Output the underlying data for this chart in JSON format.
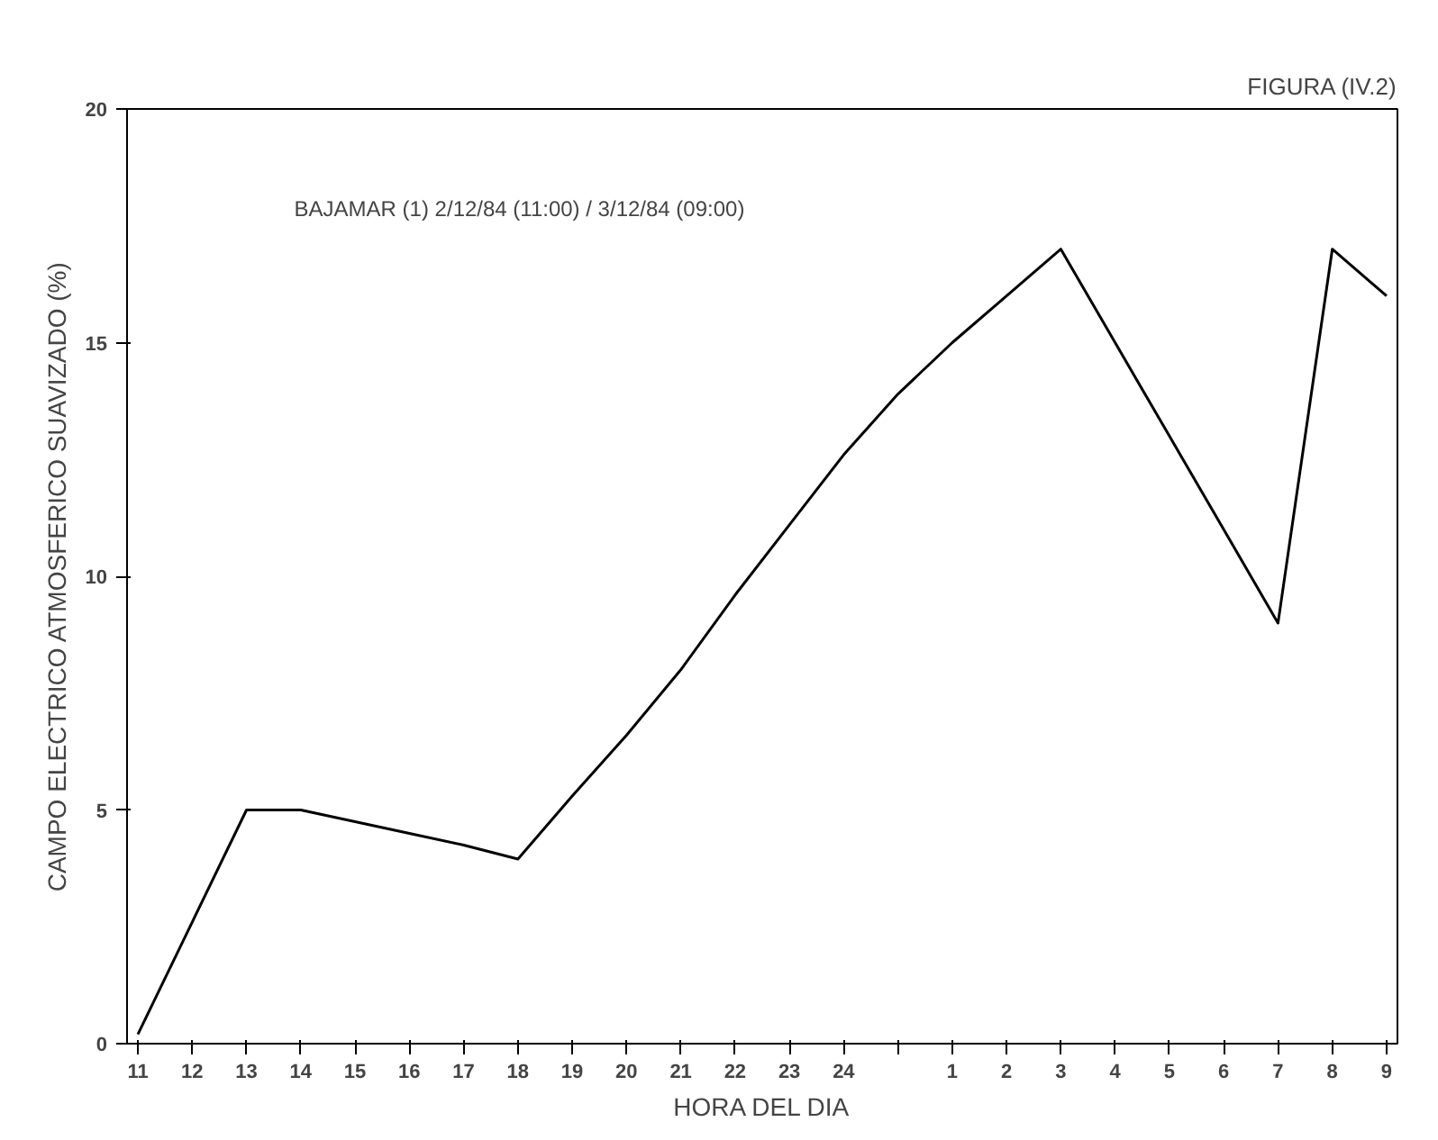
{
  "chart_data": {
    "type": "line",
    "title": "FIGURA (IV.2)",
    "xlabel": "HORA DEL DIA",
    "ylabel": "CAMPO ELECTRICO ATMOSFERICO SUAVIZADO (%)",
    "categories": [
      "11",
      "12",
      "13",
      "14",
      "15",
      "16",
      "17",
      "18",
      "19",
      "20",
      "21",
      "22",
      "23",
      "24",
      null,
      "1",
      "2",
      "3",
      "4",
      "5",
      "6",
      "7",
      "8",
      "9"
    ],
    "series": [
      {
        "color": "#000000",
        "values": [
          0.2,
          2.6,
          5.0,
          5.0,
          4.75,
          4.5,
          4.25,
          3.95,
          5.3,
          6.6,
          8.0,
          9.6,
          11.1,
          12.6,
          13.9,
          15.0,
          16.0,
          17.0,
          15.0,
          13.0,
          11.0,
          9.0,
          17.0,
          16.0
        ]
      }
    ],
    "ylim": [
      0,
      20
    ],
    "yticks": [
      0,
      5,
      10,
      15,
      20
    ],
    "annotations": [
      "BAJAMAR (1)     2/12/84 (11:00)     /     3/12/84 (09:00)"
    ],
    "grid": false,
    "marker": "none",
    "line_style": "solid"
  }
}
